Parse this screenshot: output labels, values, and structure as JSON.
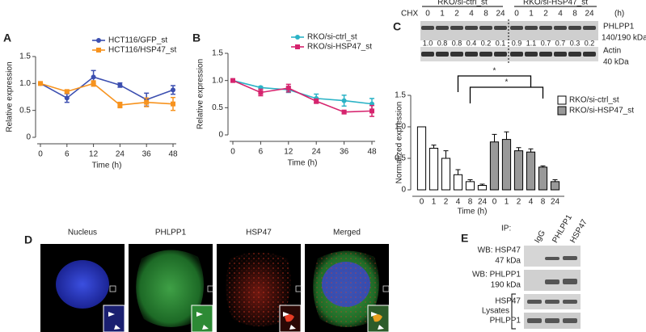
{
  "chart_data": [
    {
      "type": "line",
      "panel": "A",
      "xlabel": "Time (h)",
      "ylabel": "Relative expression",
      "categories": [
        "0",
        "6",
        "12",
        "24",
        "36",
        "48"
      ],
      "series": [
        {
          "name": "HCT116/GFP_st",
          "color": "#3c4fb0",
          "marker": "circle",
          "values": [
            1.0,
            0.73,
            1.12,
            0.97,
            0.7,
            0.88
          ],
          "errors": [
            0,
            0.08,
            0.12,
            0.04,
            0.12,
            0.08
          ]
        },
        {
          "name": "HCT116/HSP47_st",
          "color": "#f7931e",
          "marker": "square",
          "values": [
            1.0,
            0.85,
            1.0,
            0.6,
            0.65,
            0.62
          ],
          "errors": [
            0,
            0.03,
            0.05,
            0.05,
            0.08,
            0.12
          ]
        }
      ],
      "ylim": [
        0,
        1.5
      ],
      "yticks": [
        0,
        0.5,
        {
          "value": 1,
          "label": "1.0"
        },
        1.5
      ],
      "legend": "upper right"
    },
    {
      "type": "line",
      "panel": "B",
      "xlabel": "Time (h)",
      "ylabel": "Relative expression",
      "categories": [
        "0",
        "6",
        "12",
        "24",
        "36",
        "48"
      ],
      "series": [
        {
          "name": "RKO/si-ctrl_st",
          "color": "#2bb3c6",
          "marker": "circle",
          "values": [
            1.0,
            0.87,
            0.83,
            0.67,
            0.63,
            0.57
          ],
          "errors": [
            0,
            0.02,
            0.05,
            0.08,
            0.1,
            0.1
          ]
        },
        {
          "name": "RKO/si-HSP47_st",
          "color": "#d6246e",
          "marker": "square",
          "values": [
            1.0,
            0.78,
            0.86,
            0.62,
            0.42,
            0.44
          ],
          "errors": [
            0,
            0.06,
            0.07,
            0.04,
            0.03,
            0.1
          ]
        }
      ],
      "ylim": [
        0,
        1.5
      ],
      "yticks": [
        0,
        0.5,
        {
          "value": 1,
          "label": "1.0"
        },
        1.5
      ],
      "legend": "upper right"
    },
    {
      "type": "bar",
      "xlabel": "Time (h)",
      "ylabel": "Normalized expression",
      "categories": [
        "0",
        "1",
        "2",
        "4",
        "8",
        "24"
      ],
      "series": [
        {
          "name": "RKO/si-ctrl_st",
          "color": "#ffffff",
          "values": [
            1.0,
            0.66,
            0.5,
            0.24,
            0.13,
            0.07
          ],
          "errors": [
            0,
            0.05,
            0.12,
            0.08,
            0.03,
            0.02
          ]
        },
        {
          "name": "RKO/si-HSP47_st",
          "color": "#999999",
          "values": [
            0.76,
            0.8,
            0.62,
            0.6,
            0.36,
            0.13
          ],
          "errors": [
            0.12,
            0.12,
            0.05,
            0.05,
            0.02,
            0.03
          ]
        }
      ],
      "ylim": [
        0,
        1.5
      ],
      "yticks": [
        0,
        0.5,
        {
          "value": 1,
          "label": "1.0"
        },
        1.5
      ],
      "legend": "upper right",
      "annotations": [
        "*",
        "*"
      ]
    }
  ],
  "blot_c": {
    "panel": "C",
    "treatment": "CHX",
    "groups": [
      "RKO/si-ctrl_st",
      "RKO/si-HSP47_st"
    ],
    "unit": "(h)",
    "lanes": [
      "0",
      "1",
      "2",
      "4",
      "8",
      "24",
      "0",
      "1",
      "2",
      "4",
      "8",
      "24"
    ],
    "bands": [
      {
        "name": "PHLPP1",
        "size": "140/190 kDa"
      },
      {
        "name": "Actin",
        "size": "40 kDa"
      }
    ],
    "ratios": [
      "1.0",
      "0.8",
      "0.8",
      "0.4",
      "0.2",
      "0.1",
      "0.9",
      "1.1",
      "0.7",
      "0.7",
      "0.3",
      "0.2"
    ]
  },
  "microscopy": {
    "panel": "D",
    "channels": [
      "Nucleus",
      "PHLPP1",
      "HSP47",
      "Merged"
    ]
  },
  "blot_e": {
    "panel": "E",
    "ip": "IP:",
    "lanes": [
      "IgG",
      "PHLPP1",
      "HSP47"
    ],
    "rows": [
      {
        "name": "WB: HSP47",
        "size": "47 kDa"
      },
      {
        "name": "WB: PHLPP1",
        "size": "190 kDa"
      }
    ],
    "lysates": "Lysates",
    "lysate_rows": [
      "HSP47",
      "PHLPP1"
    ]
  }
}
